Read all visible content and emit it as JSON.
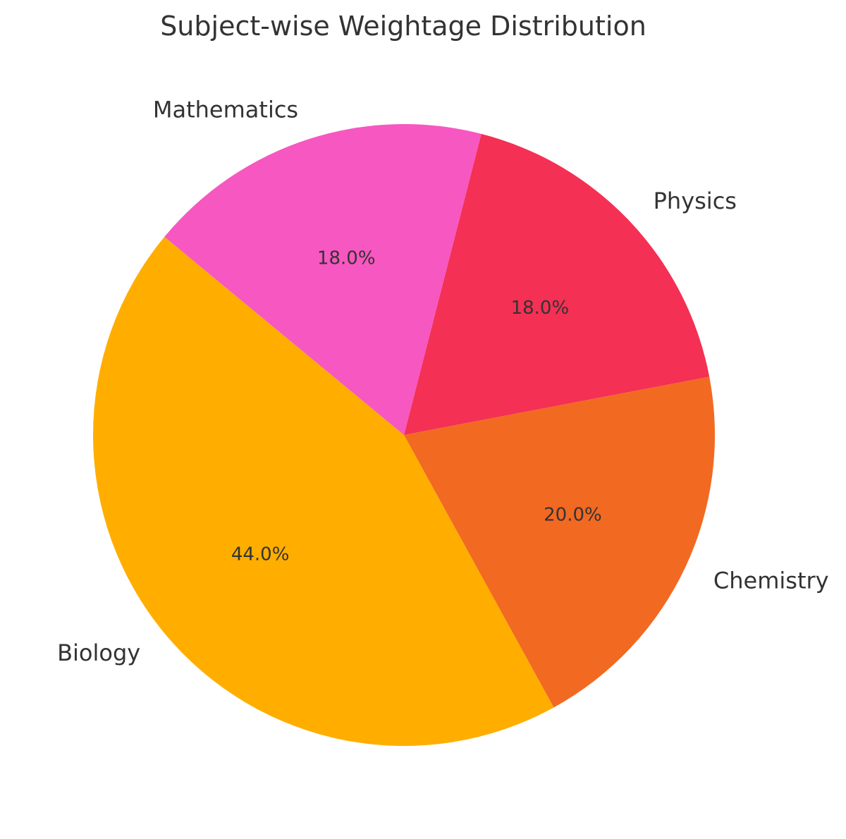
{
  "chart_data": {
    "type": "pie",
    "title": "Subject-wise Weightage Distribution",
    "categories": [
      "Physics",
      "Chemistry",
      "Biology",
      "Mathematics"
    ],
    "values": [
      18.0,
      20.0,
      44.0,
      18.0
    ],
    "labels_pct": [
      "18.0%",
      "20.0%",
      "44.0%",
      "18.0%"
    ],
    "colors": [
      "#f43054",
      "#f26922",
      "#ffae00",
      "#f757c0"
    ],
    "center": [
      573,
      617
    ],
    "radius": 441,
    "start_angle_deg": 75.6,
    "direction": "clockwise"
  }
}
